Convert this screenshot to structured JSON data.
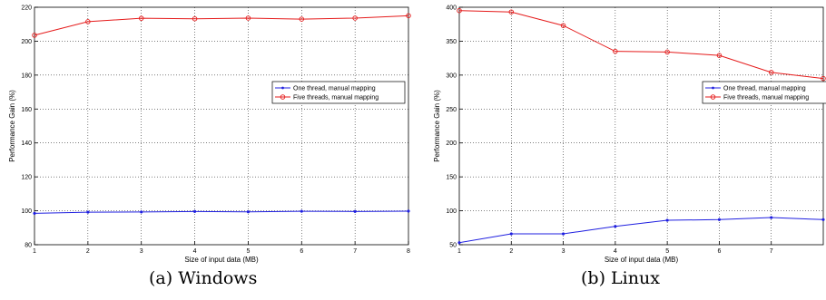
{
  "captions": {
    "a": "(a) Windows",
    "b": "(b) Linux"
  },
  "colors": {
    "one_thread": "#1f1fe0",
    "five_threads": "#e51b1b"
  },
  "chart_data": [
    {
      "type": "line",
      "platform": "Windows",
      "xlabel": "Size of input data (MB)",
      "ylabel": "Performance Gain (%)",
      "xlim": [
        1,
        8
      ],
      "ylim": [
        80,
        220
      ],
      "xticks": [
        1,
        2,
        3,
        4,
        5,
        6,
        7,
        8
      ],
      "yticks": [
        80,
        100,
        120,
        140,
        160,
        180,
        200,
        220
      ],
      "grid": true,
      "legend": "center-right",
      "x": [
        1,
        2,
        3,
        4,
        5,
        6,
        7,
        8
      ],
      "series": [
        {
          "name": "One thread, manual mapping",
          "marker": "dot",
          "color": "#1f1fe0",
          "values": [
            98.5,
            99.2,
            99.3,
            99.6,
            99.4,
            99.7,
            99.6,
            99.8
          ]
        },
        {
          "name": "Five threads, manual mapping",
          "marker": "circle",
          "color": "#e51b1b",
          "values": [
            203.5,
            211.5,
            213.5,
            213.2,
            213.6,
            213.0,
            213.6,
            215.0
          ]
        }
      ]
    },
    {
      "type": "line",
      "platform": "Linux",
      "xlabel": "Size of input data (MB)",
      "ylabel": "Performance Gain (%)",
      "xlim": [
        1,
        8
      ],
      "ylim": [
        50,
        400
      ],
      "xticks": [
        1,
        2,
        3,
        4,
        5,
        6,
        7
      ],
      "yticks": [
        50,
        100,
        150,
        200,
        250,
        300,
        350,
        400
      ],
      "grid": true,
      "legend": "top-right",
      "x": [
        1,
        2,
        3,
        4,
        5,
        6,
        7,
        8
      ],
      "series": [
        {
          "name": "One thread, manual mapping",
          "marker": "dot",
          "color": "#1f1fe0",
          "values": [
            53,
            66,
            66,
            77,
            86,
            87,
            90,
            87
          ]
        },
        {
          "name": "Five threads, manual mapping",
          "marker": "circle",
          "color": "#e51b1b",
          "values": [
            395,
            393,
            373,
            335,
            334,
            329,
            304,
            295
          ]
        }
      ]
    }
  ]
}
